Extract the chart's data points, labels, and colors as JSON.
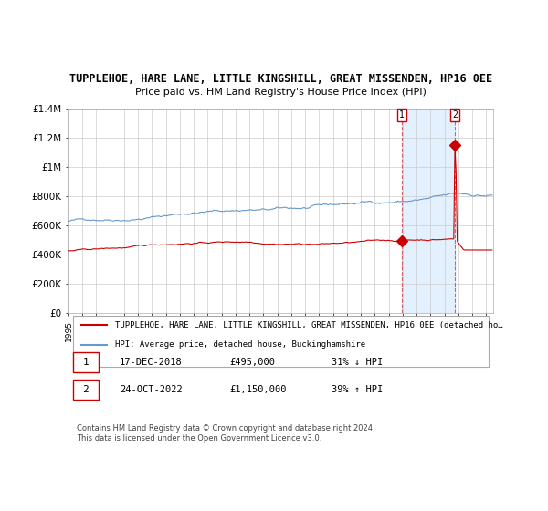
{
  "title": "TUPPLEHOE, HARE LANE, LITTLE KINGSHILL, GREAT MISSENDEN, HP16 0EE",
  "subtitle": "Price paid vs. HM Land Registry's House Price Index (HPI)",
  "xlabel": "",
  "ylabel": "",
  "ylim": [
    0,
    1400000
  ],
  "yticks": [
    0,
    200000,
    400000,
    600000,
    800000,
    1000000,
    1200000,
    1400000
  ],
  "ytick_labels": [
    "£0",
    "£200K",
    "£400K",
    "£600K",
    "£800K",
    "£1M",
    "£1.2M",
    "£1.4M"
  ],
  "background_color": "#ffffff",
  "plot_bg_color": "#ffffff",
  "grid_color": "#cccccc",
  "hpi_color": "#6699cc",
  "price_color": "#cc0000",
  "hpi_fill_color": "#ddeeff",
  "marker1_date_index": 287,
  "marker1_label": "1",
  "marker1_value": 495000,
  "marker2_date_index": 334,
  "marker2_label": "2",
  "marker2_value": 1150000,
  "annotation1": [
    "1",
    "17-DEC-2018",
    "£495,000",
    "31% ↓ HPI"
  ],
  "annotation2": [
    "2",
    "24-OCT-2022",
    "£1,150,000",
    "39% ↑ HPI"
  ],
  "legend_line1": "TUPPLEHOE, HARE LANE, LITTLE KINGSHILL, GREAT MISSENDEN, HP16 0EE (detached ho…",
  "legend_line2": "HPI: Average price, detached house, Buckinghamshire",
  "footer": "Contains HM Land Registry data © Crown copyright and database right 2024.\nThis data is licensed under the Open Government Licence v3.0.",
  "xstart_year": 1995,
  "xend_year": 2025
}
